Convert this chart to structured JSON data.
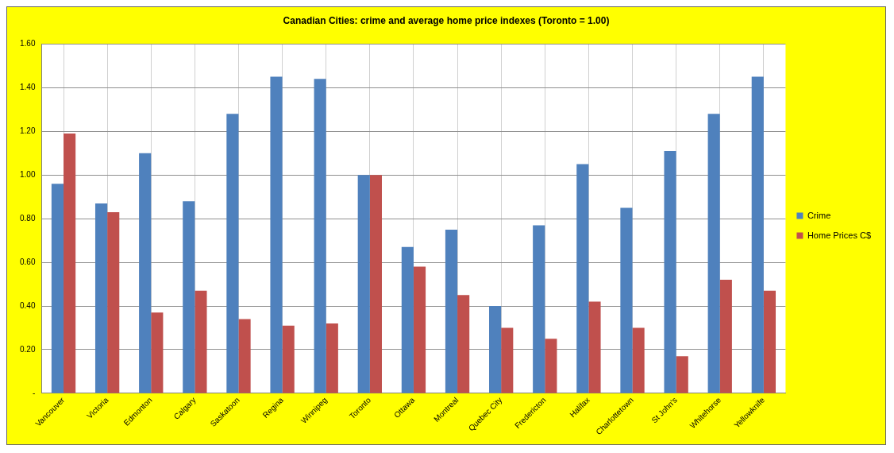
{
  "chart_data": {
    "type": "bar",
    "title": "Canadian Cities: crime and average home price indexes (Toronto = 1.00)",
    "categories": [
      "Vancouver",
      "Victoria",
      "Edmonton",
      "Calgary",
      "Saskatoon",
      "Regina",
      "Winnipeg",
      "Toronto",
      "Ottawa",
      "Montreal",
      "Quebec City",
      "Fredericton",
      "Halifax",
      "Charlottetown",
      "St John's",
      "Whitehorse",
      "Yellowknife"
    ],
    "series": [
      {
        "name": "Crime",
        "color": "#4f81bd",
        "values": [
          0.96,
          0.87,
          1.1,
          0.88,
          1.28,
          1.45,
          1.44,
          1.0,
          0.67,
          0.75,
          0.4,
          0.77,
          1.05,
          0.85,
          1.11,
          1.28,
          1.45
        ]
      },
      {
        "name": "Home Prices C$",
        "color": "#c0504d",
        "values": [
          1.19,
          0.83,
          0.37,
          0.47,
          0.34,
          0.31,
          0.32,
          1.0,
          0.58,
          0.45,
          0.3,
          0.25,
          0.42,
          0.3,
          0.17,
          0.52,
          0.47
        ]
      }
    ],
    "ylim": [
      0,
      1.6
    ],
    "yticks": [
      {
        "value": 0,
        "label": "-"
      },
      {
        "value": 0.2,
        "label": "0.20"
      },
      {
        "value": 0.4,
        "label": "0.40"
      },
      {
        "value": 0.6,
        "label": "0.60"
      },
      {
        "value": 0.8,
        "label": "0.80"
      },
      {
        "value": 1,
        "label": "1.00"
      },
      {
        "value": 1.2,
        "label": "1.20"
      },
      {
        "value": 1.4,
        "label": "1.40"
      },
      {
        "value": 1.6,
        "label": "1.60"
      }
    ],
    "grid": true,
    "legend": "right"
  }
}
